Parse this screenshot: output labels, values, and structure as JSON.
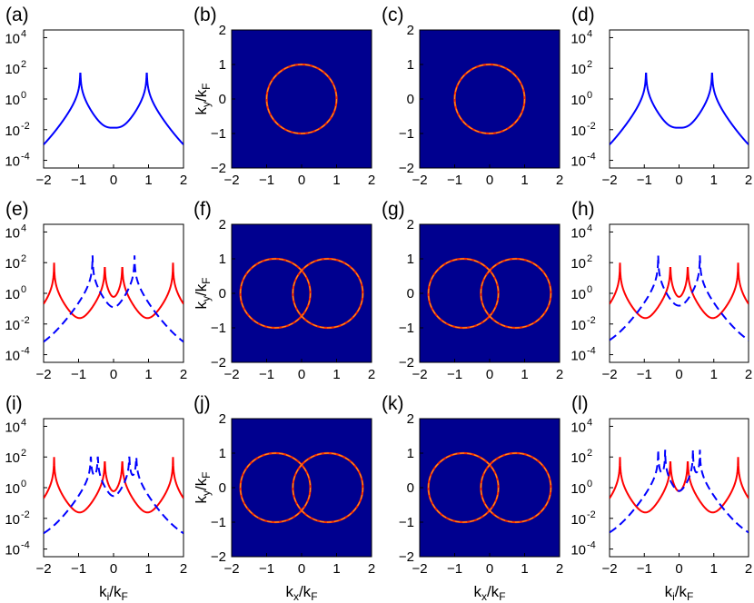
{
  "figure": {
    "panel_labels": [
      "(a)",
      "(b)",
      "(c)",
      "(d)",
      "(e)",
      "(f)",
      "(g)",
      "(h)",
      "(i)",
      "(j)",
      "(k)",
      "(l)"
    ],
    "x_axis_labels": {
      "ki": "kᵢ/kᴅ",
      "kx": "kₓ/kᴅ"
    },
    "y_axis_label": "kᵧ/kᴅ"
  },
  "chart_data": [
    {
      "panel": "(a)",
      "type": "line",
      "xlim": [
        -2,
        2
      ],
      "ylim_log10": [
        -4.5,
        4.5
      ],
      "yscale": "log",
      "x_ticks": [
        -2,
        -1,
        0,
        1,
        2
      ],
      "y_ticks": [
        "10-4",
        "10-2",
        "100",
        "102",
        "104"
      ],
      "series": [
        {
          "style": "solid",
          "color": "#0000ff",
          "peaks": [
            -0.95,
            0.95
          ],
          "peak_value": 100,
          "min_value": 0.01,
          "edge_value": 0.00015
        }
      ]
    },
    {
      "panel": "(b)",
      "type": "heatmap",
      "xlim": [
        -2,
        2
      ],
      "ylim": [
        -2,
        2
      ],
      "x_ticks": [
        -2,
        -1,
        0,
        1,
        2
      ],
      "y_ticks": [
        -2,
        -1,
        0,
        1,
        2
      ],
      "ylabel": "ky/kF",
      "background": "#00008f",
      "curve_color": "#f0a020",
      "circles": [
        {
          "cx": 0,
          "cy": 0,
          "r": 1
        }
      ]
    },
    {
      "panel": "(c)",
      "type": "heatmap",
      "xlim": [
        -2,
        2
      ],
      "ylim": [
        -2,
        2
      ],
      "x_ticks": [
        -2,
        -1,
        0,
        1,
        2
      ],
      "y_ticks": [
        -2,
        -1,
        0,
        1,
        2
      ],
      "background": "#00008f",
      "curve_color": "#f0a020",
      "circles": [
        {
          "cx": 0,
          "cy": 0,
          "r": 1
        }
      ]
    },
    {
      "panel": "(d)",
      "type": "line",
      "xlim": [
        -2,
        2
      ],
      "ylim_log10": [
        -4.5,
        4.5
      ],
      "yscale": "log",
      "x_ticks": [
        -2,
        -1,
        0,
        1,
        2
      ],
      "y_ticks": [
        "10-4",
        "10-2",
        "100",
        "102",
        "104"
      ],
      "series": [
        {
          "style": "solid",
          "color": "#0000ff",
          "peaks": [
            -0.95,
            0.95
          ],
          "peak_value": 100,
          "min_value": 0.01,
          "edge_value": 0.00015
        }
      ]
    },
    {
      "panel": "(e)",
      "type": "line",
      "xlim": [
        -2,
        2
      ],
      "ylim_log10": [
        -4.5,
        4.5
      ],
      "yscale": "log",
      "x_ticks": [
        -2,
        -1,
        0,
        1,
        2
      ],
      "y_ticks": [
        "10-4",
        "10-2",
        "100",
        "102",
        "104"
      ],
      "series": [
        {
          "style": "solid",
          "color": "#ff0000",
          "peaks": [
            -1.7,
            -0.25,
            0.25,
            1.7
          ],
          "peak_value": 100,
          "min_value": 0.006,
          "edge_value": 0.02
        },
        {
          "style": "dashed",
          "color": "#0000ff",
          "peaks": [
            -0.6,
            0.6
          ],
          "peak_value": 300,
          "min_value": 0.02,
          "edge_value": 0.0003
        }
      ]
    },
    {
      "panel": "(f)",
      "type": "heatmap",
      "xlim": [
        -2,
        2
      ],
      "ylim": [
        -2,
        2
      ],
      "x_ticks": [
        -2,
        -1,
        0,
        1,
        2
      ],
      "y_ticks": [
        -2,
        -1,
        0,
        1,
        2
      ],
      "ylabel": "ky/kF",
      "background": "#00008f",
      "curve_color": "#f0a020",
      "circles": [
        {
          "cx": -0.75,
          "cy": 0,
          "r": 1
        },
        {
          "cx": 0.75,
          "cy": 0,
          "r": 1
        }
      ]
    },
    {
      "panel": "(g)",
      "type": "heatmap",
      "xlim": [
        -2,
        2
      ],
      "ylim": [
        -2,
        2
      ],
      "x_ticks": [
        -2,
        -1,
        0,
        1,
        2
      ],
      "y_ticks": [
        -2,
        -1,
        0,
        1,
        2
      ],
      "background": "#00008f",
      "curve_color": "#f0a020",
      "circles": [
        {
          "cx": -0.75,
          "cy": 0,
          "r": 1
        },
        {
          "cx": 0.75,
          "cy": 0,
          "r": 1
        }
      ]
    },
    {
      "panel": "(h)",
      "type": "line",
      "xlim": [
        -2,
        2
      ],
      "ylim_log10": [
        -4.5,
        4.5
      ],
      "yscale": "log",
      "x_ticks": [
        -2,
        -1,
        0,
        1,
        2
      ],
      "y_ticks": [
        "10-4",
        "10-2",
        "100",
        "102",
        "104"
      ],
      "series": [
        {
          "style": "solid",
          "color": "#ff0000",
          "peaks": [
            -1.7,
            -0.25,
            0.25,
            1.7
          ],
          "peak_value": 100,
          "min_value": 0.006,
          "edge_value": 0.02
        },
        {
          "style": "dashed",
          "color": "#0000ff",
          "peaks": [
            -0.6,
            0.6
          ],
          "peak_value": 300,
          "min_value": 0.05,
          "edge_value": 0.0003
        }
      ]
    },
    {
      "panel": "(i)",
      "type": "line",
      "xlim": [
        -2,
        2
      ],
      "ylim_log10": [
        -4.5,
        4.5
      ],
      "yscale": "log",
      "x_ticks": [
        -2,
        -1,
        0,
        1,
        2
      ],
      "y_ticks": [
        "10-4",
        "10-2",
        "100",
        "102",
        "104"
      ],
      "series": [
        {
          "style": "solid",
          "color": "#ff0000",
          "peaks": [
            -1.7,
            -0.25,
            0.25,
            1.7
          ],
          "peak_value": 100,
          "min_value": 0.006,
          "edge_value": 0.02
        },
        {
          "style": "dashed",
          "color": "#0000ff",
          "peaks": [
            -0.65,
            -0.45,
            0.45,
            0.65
          ],
          "peak_value": 200,
          "min_value": 0.02,
          "edge_value": 0.0005
        }
      ]
    },
    {
      "panel": "(j)",
      "type": "heatmap",
      "xlim": [
        -2,
        2
      ],
      "ylim": [
        -2,
        2
      ],
      "x_ticks": [
        -2,
        -1,
        0,
        1,
        2
      ],
      "y_ticks": [
        -2,
        -1,
        0,
        1,
        2
      ],
      "ylabel": "ky/kF",
      "background": "#00008f",
      "curve_color": "#f0a020",
      "circles": [
        {
          "cx": -0.75,
          "cy": 0,
          "r": 1
        },
        {
          "cx": 0.75,
          "cy": 0,
          "r": 1
        }
      ]
    },
    {
      "panel": "(k)",
      "type": "heatmap",
      "xlim": [
        -2,
        2
      ],
      "ylim": [
        -2,
        2
      ],
      "x_ticks": [
        -2,
        -1,
        0,
        1,
        2
      ],
      "y_ticks": [
        -2,
        -1,
        0,
        1,
        2
      ],
      "background": "#00008f",
      "curve_color": "#f0a020",
      "circles": [
        {
          "cx": -0.75,
          "cy": 0,
          "r": 1
        },
        {
          "cx": 0.75,
          "cy": 0,
          "r": 1
        }
      ]
    },
    {
      "panel": "(l)",
      "type": "line",
      "xlim": [
        -2,
        2
      ],
      "ylim_log10": [
        -4.5,
        4.5
      ],
      "yscale": "log",
      "x_ticks": [
        -2,
        -1,
        0,
        1,
        2
      ],
      "y_ticks": [
        "10-4",
        "10-2",
        "100",
        "102",
        "104"
      ],
      "series": [
        {
          "style": "solid",
          "color": "#ff0000",
          "peaks": [
            -1.7,
            -0.25,
            0.25,
            1.7
          ],
          "peak_value": 100,
          "min_value": 0.006,
          "edge_value": 0.02
        },
        {
          "style": "dashed",
          "color": "#0000ff",
          "peaks": [
            -0.6,
            -0.4,
            0.4,
            0.6
          ],
          "peak_value": 300,
          "min_value": 0.03,
          "edge_value": 0.0005
        }
      ]
    }
  ]
}
